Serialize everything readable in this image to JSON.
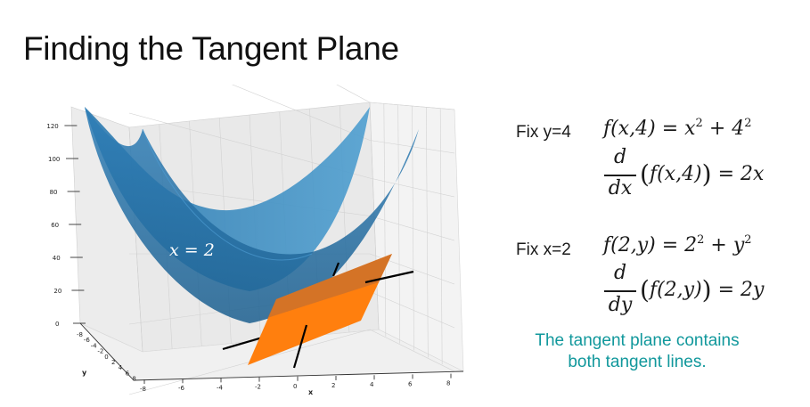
{
  "title": "Finding the Tangent Plane",
  "plot": {
    "z_ticks": [
      "0",
      "20",
      "40",
      "60",
      "80",
      "100",
      "120"
    ],
    "x_ticks": [
      "-8",
      "-6",
      "-4",
      "-2",
      "0",
      "2",
      "4",
      "6",
      "8"
    ],
    "y_ticks": [
      "-8",
      "-6",
      "-4",
      "-2",
      "0",
      "2",
      "4",
      "6",
      "8"
    ],
    "x_label": "x",
    "y_label": "y",
    "surface_label": "x = 2",
    "colors": {
      "surface": "#1f77b4",
      "plane": "#ff7f0e",
      "lines": "#000000"
    }
  },
  "equations": {
    "fix_y_label": "Fix y=4",
    "fy_lhs": "f(x,4) = x",
    "fy_rhs": " + 4",
    "exp2": "2",
    "fix_x_label": "Fix x=2",
    "fx_lhs": "f(2,y) = 2",
    "fx_rhs": " + y",
    "d": "d",
    "dx": "dx",
    "dy": "dy",
    "deriv_x_body": "f(x,4)",
    "deriv_x_result": " = 2x",
    "deriv_y_body": "f(2,y)",
    "deriv_y_result": " = 2y",
    "lparen": "(",
    "rparen": ")"
  },
  "note_lines": [
    "The tangent plane contains",
    "both tangent lines."
  ]
}
